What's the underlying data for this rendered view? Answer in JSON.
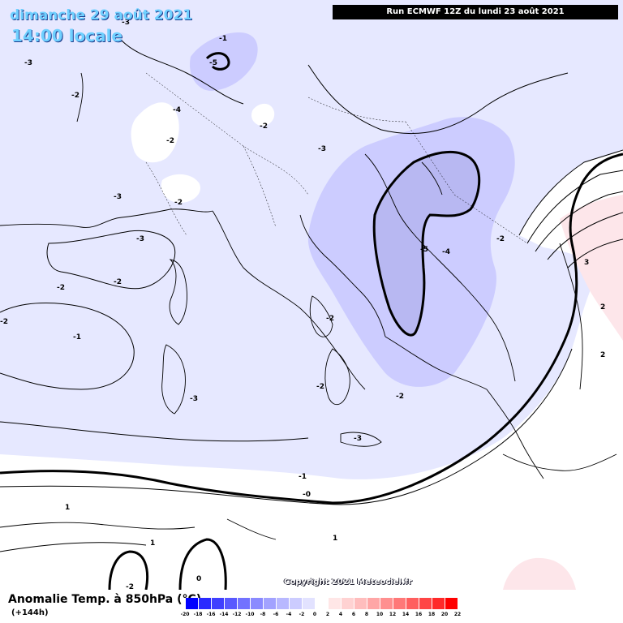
{
  "header": {
    "date": "dimanche 29 août 2021",
    "time": "14:00 locale",
    "run": "Run ECMWF 12Z du lundi 23 août 2021"
  },
  "copyright": "Copyright 2021 Meteociel.fr",
  "legend": {
    "title": "Anomalie Temp. à 850hPa (°C)",
    "lead": "(+144h)",
    "ticks": [
      "-20",
      "-18",
      "-16",
      "-14",
      "-12",
      "-10",
      "-8",
      "-6",
      "-4",
      "-2",
      "0",
      "2",
      "4",
      "6",
      "8",
      "10",
      "12",
      "14",
      "16",
      "18",
      "20",
      "22"
    ],
    "colors": [
      "#0000ff",
      "#2a2aff",
      "#3f3fff",
      "#5858ff",
      "#7272ff",
      "#8a8aff",
      "#a2a2ff",
      "#b8b8ff",
      "#ccccff",
      "#e2e2ff",
      "#ffffff",
      "#ffe6e6",
      "#ffd2d2",
      "#ffbdbd",
      "#ffa6a6",
      "#ff8f8f",
      "#ff7878",
      "#ff5f5f",
      "#ff4545",
      "#ff2a2a",
      "#ff0000"
    ]
  },
  "colors": {
    "anomaly_m2": "#e6e8ff",
    "anomaly_m4": "#ccccff",
    "anomaly_m6": "#b8b8f2",
    "anomaly_p2": "#fde6ea",
    "coast": "#000000"
  },
  "contour_labels": [
    "-3",
    "-2",
    "-1",
    "-4",
    "-5",
    "-2",
    "-2",
    "-3",
    "-2",
    "-3",
    "-2",
    "-3",
    "-5",
    "-4",
    "-2",
    "-2",
    "-1",
    "-2",
    "-3",
    "-2",
    "-2",
    "-3",
    "-3",
    "-2",
    "-1",
    "-0",
    "1",
    "1",
    "1",
    "0",
    "-2",
    "2",
    "3",
    "2"
  ]
}
